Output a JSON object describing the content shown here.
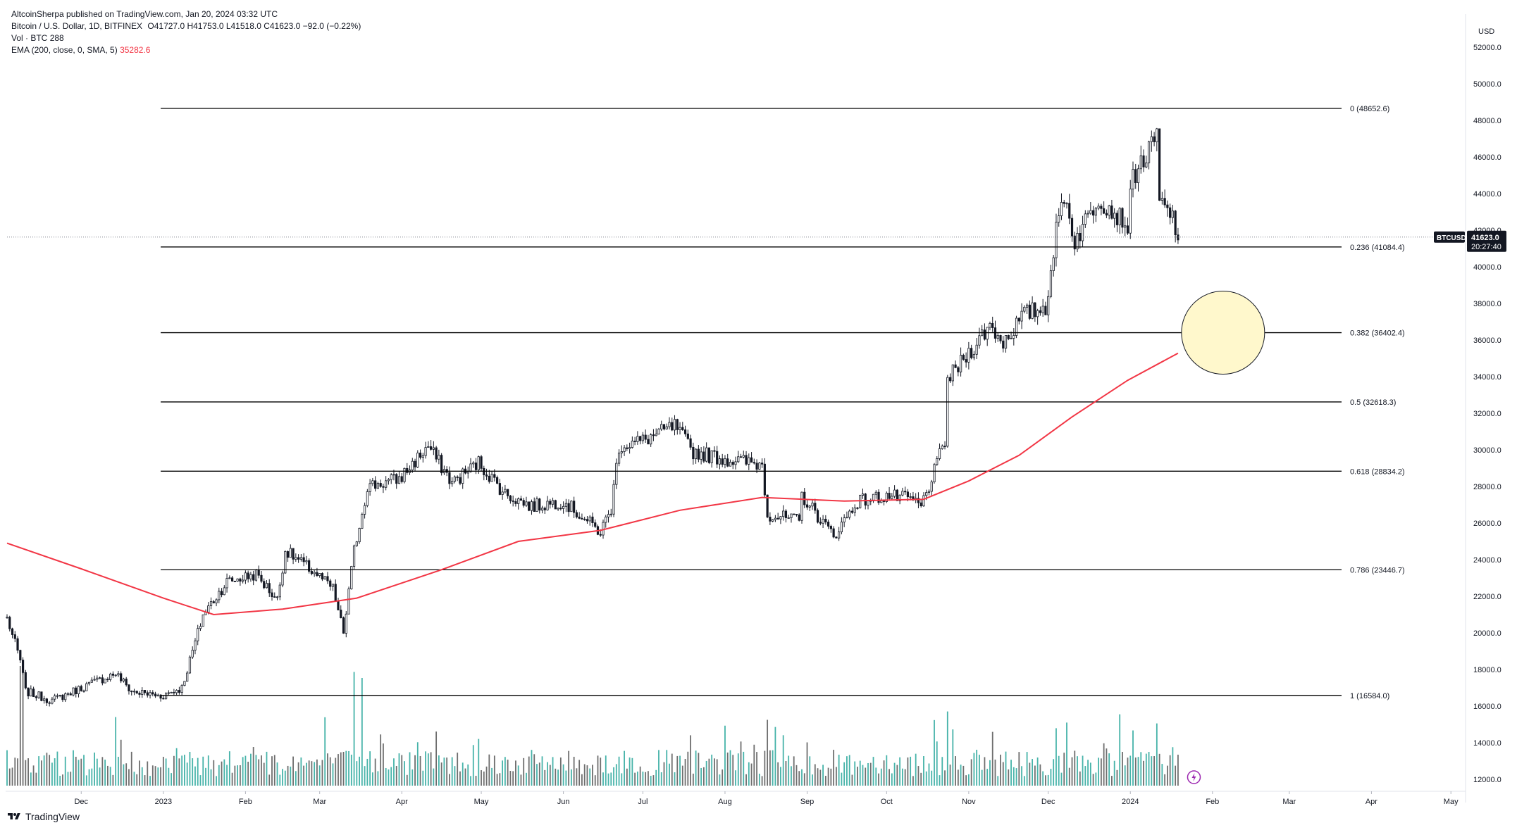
{
  "header": {
    "published": "AltcoinSherpa published on TradingView.com, Jan 20, 2024 03:32 UTC",
    "symbol": "Bitcoin / U.S. Dollar, 1D, BITFINEX",
    "ohlc": "O41727.0  H41753.0  L41518.0  C41623.0  −92.0 (−0.22%)",
    "vol_label": "Vol · BTC",
    "vol_value": "288",
    "ema_label": "EMA (200, close, 0, SMA, 5)",
    "ema_value": "35282.6"
  },
  "footer": {
    "brand": "TradingView"
  },
  "colors": {
    "candle": "#131722",
    "ema": "#f23645",
    "volume_up": "#26a69a",
    "volume_down": "#555555",
    "fib_line": "#000000",
    "highlight_circle_fill": "#fff8cc",
    "highlight_circle_stroke": "#131722"
  },
  "chart_data": {
    "type": "candlestick",
    "title": "Bitcoin / U.S. Dollar, 1D, BITFINEX",
    "currency_label": "USD",
    "price_scale": "linear",
    "ylim": [
      11500,
      53500
    ],
    "y_ticks": [
      12000,
      14000,
      16000,
      18000,
      20000,
      22000,
      24000,
      26000,
      28000,
      30000,
      32000,
      34000,
      36000,
      38000,
      40000,
      42000,
      44000,
      46000,
      48000,
      50000,
      52000
    ],
    "x_ticks": [
      "Dec",
      "2023",
      "Feb",
      "Mar",
      "Apr",
      "May",
      "Jun",
      "Jul",
      "Aug",
      "Sep",
      "Oct",
      "Nov",
      "Dec",
      "2024",
      "Feb",
      "Mar",
      "Apr",
      "May"
    ],
    "x_tick_dates": [
      "2022-12-01",
      "2023-01-01",
      "2023-02-01",
      "2023-03-01",
      "2023-04-01",
      "2023-05-01",
      "2023-06-01",
      "2023-07-01",
      "2023-08-01",
      "2023-09-01",
      "2023-10-01",
      "2023-11-01",
      "2023-12-01",
      "2024-01-01",
      "2024-02-01",
      "2024-03-01",
      "2024-04-01",
      "2024-05-01"
    ],
    "xlim": [
      "2022-11-03",
      "2024-05-06"
    ],
    "price_path": [
      [
        "2022-11-03",
        20800
      ],
      [
        "2022-11-08",
        18500
      ],
      [
        "2022-11-10",
        16800
      ],
      [
        "2022-11-20",
        16300
      ],
      [
        "2022-12-01",
        17000
      ],
      [
        "2022-12-14",
        17800
      ],
      [
        "2022-12-20",
        16800
      ],
      [
        "2022-12-31",
        16550
      ],
      [
        "2023-01-08",
        17000
      ],
      [
        "2023-01-13",
        19500
      ],
      [
        "2023-01-16",
        21000
      ],
      [
        "2023-01-25",
        22800
      ],
      [
        "2023-02-05",
        23200
      ],
      [
        "2023-02-13",
        21800
      ],
      [
        "2023-02-16",
        24500
      ],
      [
        "2023-02-28",
        23200
      ],
      [
        "2023-03-06",
        22400
      ],
      [
        "2023-03-10",
        20000
      ],
      [
        "2023-03-14",
        24500
      ],
      [
        "2023-03-19",
        28000
      ],
      [
        "2023-03-31",
        28400
      ],
      [
        "2023-04-11",
        30200
      ],
      [
        "2023-04-20",
        28200
      ],
      [
        "2023-04-30",
        29300
      ],
      [
        "2023-05-10",
        27600
      ],
      [
        "2023-05-20",
        26900
      ],
      [
        "2023-06-01",
        27200
      ],
      [
        "2023-06-15",
        25500
      ],
      [
        "2023-06-19",
        26800
      ],
      [
        "2023-06-22",
        30200
      ],
      [
        "2023-07-01",
        30500
      ],
      [
        "2023-07-13",
        31300
      ],
      [
        "2023-07-20",
        29900
      ],
      [
        "2023-08-01",
        29500
      ],
      [
        "2023-08-15",
        29200
      ],
      [
        "2023-08-17",
        26500
      ],
      [
        "2023-08-29",
        26100
      ],
      [
        "2023-08-30",
        27500
      ],
      [
        "2023-09-11",
        25300
      ],
      [
        "2023-09-20",
        27200
      ],
      [
        "2023-10-01",
        27500
      ],
      [
        "2023-10-10",
        27300
      ],
      [
        "2023-10-14",
        26900
      ],
      [
        "2023-10-19",
        28800
      ],
      [
        "2023-10-23",
        30500
      ],
      [
        "2023-10-24",
        33800
      ],
      [
        "2023-11-01",
        35300
      ],
      [
        "2023-11-09",
        36800
      ],
      [
        "2023-11-14",
        35900
      ],
      [
        "2023-11-22",
        37400
      ],
      [
        "2023-11-30",
        37800
      ],
      [
        "2023-12-04",
        41900
      ],
      [
        "2023-12-07",
        44000
      ],
      [
        "2023-12-11",
        41400
      ],
      [
        "2023-12-20",
        43800
      ],
      [
        "2023-12-31",
        42300
      ],
      [
        "2024-01-02",
        45000
      ],
      [
        "2024-01-09",
        46500
      ],
      [
        "2024-01-11",
        47200
      ],
      [
        "2024-01-12",
        43500
      ],
      [
        "2024-01-17",
        42700
      ],
      [
        "2024-01-19",
        41623
      ]
    ],
    "series": [
      {
        "name": "EMA (200, close, 0, SMA, 5)",
        "color": "#f23645",
        "points": [
          [
            "2022-11-03",
            24900
          ],
          [
            "2022-12-01",
            23500
          ],
          [
            "2023-01-01",
            21900
          ],
          [
            "2023-01-20",
            21000
          ],
          [
            "2023-02-15",
            21300
          ],
          [
            "2023-03-15",
            21900
          ],
          [
            "2023-04-15",
            23400
          ],
          [
            "2023-05-15",
            25000
          ],
          [
            "2023-06-15",
            25600
          ],
          [
            "2023-07-15",
            26700
          ],
          [
            "2023-08-15",
            27400
          ],
          [
            "2023-09-15",
            27200
          ],
          [
            "2023-10-15",
            27300
          ],
          [
            "2023-11-01",
            28300
          ],
          [
            "2023-11-20",
            29700
          ],
          [
            "2023-12-10",
            31800
          ],
          [
            "2023-12-31",
            33800
          ],
          [
            "2024-01-19",
            35282.6
          ]
        ]
      }
    ],
    "fib_levels": [
      {
        "ratio": "0",
        "price": 48652.6,
        "label": "0 (48652.6)"
      },
      {
        "ratio": "0.236",
        "price": 41084.4,
        "label": "0.236 (41084.4)"
      },
      {
        "ratio": "0.382",
        "price": 36402.4,
        "label": "0.382 (36402.4)"
      },
      {
        "ratio": "0.5",
        "price": 32618.3,
        "label": "0.5 (32618.3)"
      },
      {
        "ratio": "0.618",
        "price": 28834.2,
        "label": "0.618 (28834.2)"
      },
      {
        "ratio": "0.786",
        "price": 23446.7,
        "label": "0.786 (23446.7)"
      },
      {
        "ratio": "1",
        "price": 16584.0,
        "label": "1 (16584.0)"
      }
    ],
    "fib_start_date": "2022-12-31",
    "fib_end_date": "2024-02-12",
    "highlight_circle": {
      "date": "2024-02-05",
      "price": 36402.4
    },
    "last_price": {
      "symbol": "BTCUSD",
      "price": "41623.0",
      "countdown": "20:27:40"
    },
    "volume_spikes": [
      [
        "2022-11-08",
        1.0
      ],
      [
        "2022-11-09",
        0.95
      ],
      [
        "2023-03-14",
        0.95
      ],
      [
        "2023-03-17",
        0.9
      ],
      [
        "2023-08-17",
        0.55
      ],
      [
        "2023-10-24",
        0.62
      ],
      [
        "2023-12-04",
        0.48
      ],
      [
        "2024-01-11",
        0.52
      ]
    ]
  }
}
